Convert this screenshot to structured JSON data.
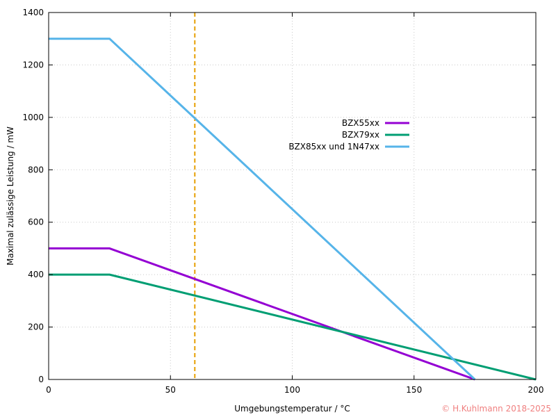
{
  "chart_data": {
    "type": "line",
    "xlabel": "Umgebungstemperatur / °C",
    "ylabel": "Maximal zulässige Leistung / mW",
    "xlim": [
      0,
      200
    ],
    "ylim": [
      0,
      1400
    ],
    "x_ticks": [
      0,
      50,
      100,
      150,
      200
    ],
    "y_ticks": [
      0,
      200,
      400,
      600,
      800,
      1000,
      1200,
      1400
    ],
    "grid": true,
    "legend_position": "top-right-inside",
    "series": [
      {
        "name": "BZX55xx",
        "color": "#9400d3",
        "points": [
          [
            0,
            500
          ],
          [
            25,
            500
          ],
          [
            175,
            0
          ]
        ]
      },
      {
        "name": "BZX79xx",
        "color": "#009e73",
        "points": [
          [
            0,
            400
          ],
          [
            25,
            400
          ],
          [
            200,
            0
          ]
        ]
      },
      {
        "name": "BZX85xx und 1N47xx",
        "color": "#56b4e9",
        "points": [
          [
            0,
            1300
          ],
          [
            25,
            1300
          ],
          [
            175,
            0
          ]
        ]
      }
    ],
    "reference_lines": [
      {
        "orientation": "vertical",
        "x": 60,
        "color": "#e69f00",
        "style": "dashed"
      }
    ],
    "copyright": "© H.Kuhlmann 2018-2025",
    "copyright_color": "#f08080"
  }
}
